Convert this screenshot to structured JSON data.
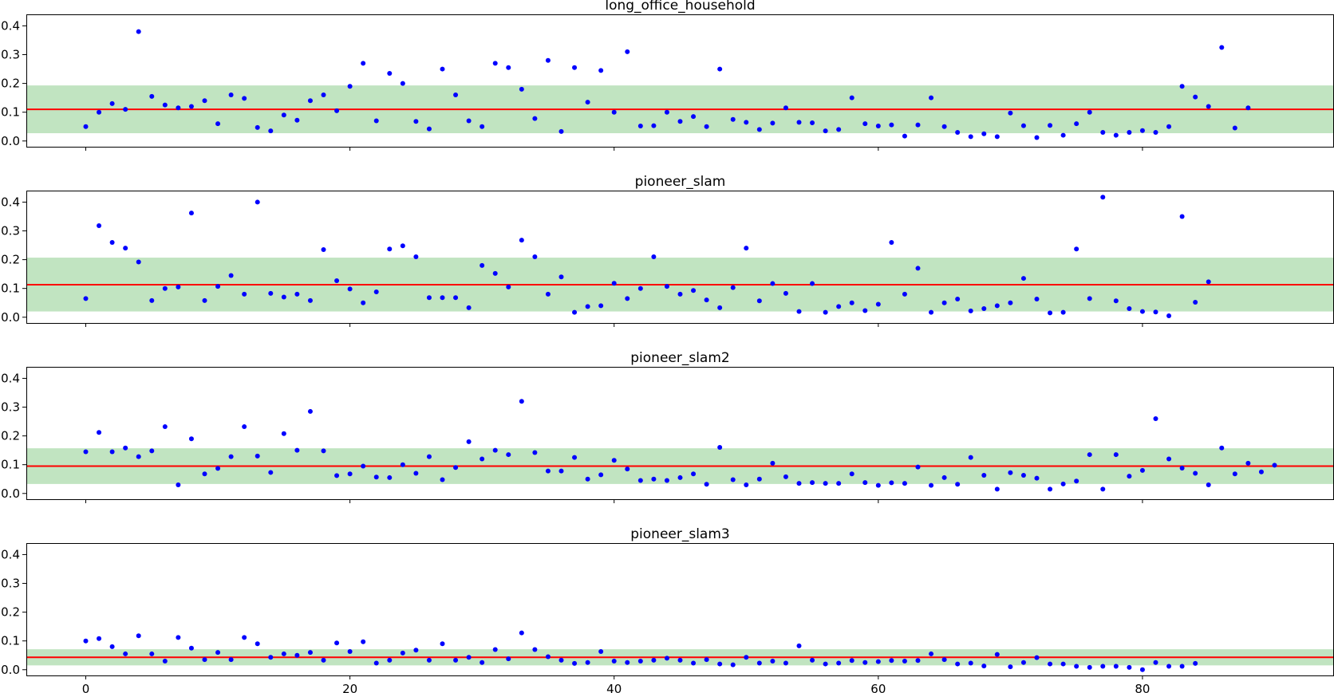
{
  "chart_data": [
    {
      "type": "scatter",
      "title": "long_office_household",
      "xlim": [
        -4.5,
        94.5
      ],
      "ylim": [
        -0.02,
        0.44
      ],
      "xticks": [
        0,
        20,
        40,
        60,
        80
      ],
      "xtick_labels": [
        "",
        "",
        "",
        "",
        ""
      ],
      "yticks": [
        0.0,
        0.1,
        0.2,
        0.3,
        0.4
      ],
      "ytick_labels": [
        "0.0",
        "0.1",
        "0.2",
        "0.3",
        "0.4"
      ],
      "mean": 0.11,
      "band": [
        0.027,
        0.193
      ],
      "point_color": "#0000ff",
      "mean_color": "#ff0000",
      "band_color": "#c1e4c1",
      "values": [
        0.05,
        0.1,
        0.13,
        0.11,
        0.38,
        0.155,
        0.125,
        0.115,
        0.12,
        0.14,
        0.06,
        0.16,
        0.148,
        0.047,
        0.035,
        0.09,
        0.072,
        0.14,
        0.16,
        0.105,
        0.19,
        0.27,
        0.07,
        0.235,
        0.2,
        0.068,
        0.042,
        0.25,
        0.16,
        0.07,
        0.05,
        0.27,
        0.255,
        0.18,
        0.078,
        0.28,
        0.033,
        0.255,
        0.135,
        0.245,
        0.1,
        0.31,
        0.052,
        0.053,
        0.1,
        0.068,
        0.085,
        0.05,
        0.25,
        0.075,
        0.065,
        0.04,
        0.062,
        0.115,
        0.065,
        0.063,
        0.035,
        0.04,
        0.15,
        0.06,
        0.052,
        0.056,
        0.017,
        0.056,
        0.15,
        0.05,
        0.03,
        0.015,
        0.025,
        0.015,
        0.097,
        0.053,
        0.012,
        0.054,
        0.02,
        0.06,
        0.1,
        0.03,
        0.02,
        0.03,
        0.036,
        0.03,
        0.05,
        0.19,
        0.153,
        0.12,
        0.325,
        0.045,
        0.115
      ]
    },
    {
      "type": "scatter",
      "title": "pioneer_slam",
      "xlim": [
        -4.5,
        94.5
      ],
      "ylim": [
        -0.02,
        0.44
      ],
      "xticks": [
        0,
        20,
        40,
        60,
        80
      ],
      "xtick_labels": [
        "",
        "",
        "",
        "",
        ""
      ],
      "yticks": [
        0.0,
        0.1,
        0.2,
        0.3,
        0.4
      ],
      "ytick_labels": [
        "0.0",
        "0.1",
        "0.2",
        "0.3",
        "0.4"
      ],
      "mean": 0.113,
      "band": [
        0.02,
        0.207
      ],
      "point_color": "#0000ff",
      "mean_color": "#ff0000",
      "band_color": "#c1e4c1",
      "values": [
        0.065,
        0.318,
        0.26,
        0.24,
        0.192,
        0.058,
        0.1,
        0.105,
        0.362,
        0.058,
        0.107,
        0.145,
        0.08,
        0.4,
        0.083,
        0.07,
        0.08,
        0.058,
        0.235,
        0.127,
        0.098,
        0.05,
        0.088,
        0.237,
        0.248,
        0.21,
        0.068,
        0.068,
        0.068,
        0.033,
        0.18,
        0.152,
        0.105,
        0.268,
        0.21,
        0.08,
        0.14,
        0.017,
        0.037,
        0.04,
        0.118,
        0.065,
        0.1,
        0.21,
        0.107,
        0.08,
        0.093,
        0.06,
        0.033,
        0.103,
        0.24,
        0.057,
        0.117,
        0.083,
        0.02,
        0.117,
        0.017,
        0.037,
        0.05,
        0.023,
        0.045,
        0.26,
        0.08,
        0.17,
        0.017,
        0.05,
        0.063,
        0.022,
        0.03,
        0.04,
        0.05,
        0.135,
        0.063,
        0.015,
        0.017,
        0.237,
        0.065,
        0.417,
        0.057,
        0.03,
        0.02,
        0.018,
        0.005,
        0.35,
        0.052,
        0.123
      ]
    },
    {
      "type": "scatter",
      "title": "pioneer_slam2",
      "xlim": [
        -4.5,
        94.5
      ],
      "ylim": [
        -0.02,
        0.44
      ],
      "xticks": [
        0,
        20,
        40,
        60,
        80
      ],
      "xtick_labels": [
        "",
        "",
        "",
        "",
        ""
      ],
      "yticks": [
        0.0,
        0.1,
        0.2,
        0.3,
        0.4
      ],
      "ytick_labels": [
        "0.0",
        "0.1",
        "0.2",
        "0.3",
        "0.4"
      ],
      "mean": 0.095,
      "band": [
        0.033,
        0.157
      ],
      "point_color": "#0000ff",
      "mean_color": "#ff0000",
      "band_color": "#c1e4c1",
      "values": [
        0.145,
        0.212,
        0.145,
        0.158,
        0.128,
        0.148,
        0.232,
        0.03,
        0.19,
        0.068,
        0.087,
        0.128,
        0.232,
        0.13,
        0.073,
        0.208,
        0.15,
        0.285,
        0.148,
        0.062,
        0.068,
        0.095,
        0.057,
        0.055,
        0.1,
        0.07,
        0.128,
        0.048,
        0.09,
        0.18,
        0.12,
        0.15,
        0.135,
        0.32,
        0.142,
        0.078,
        0.078,
        0.125,
        0.05,
        0.065,
        0.115,
        0.085,
        0.045,
        0.05,
        0.045,
        0.055,
        0.068,
        0.032,
        0.16,
        0.048,
        0.03,
        0.05,
        0.105,
        0.058,
        0.035,
        0.038,
        0.035,
        0.035,
        0.068,
        0.038,
        0.028,
        0.037,
        0.035,
        0.092,
        0.028,
        0.055,
        0.032,
        0.125,
        0.063,
        0.015,
        0.072,
        0.063,
        0.053,
        0.015,
        0.033,
        0.043,
        0.135,
        0.015,
        0.135,
        0.06,
        0.08,
        0.26,
        0.12,
        0.088,
        0.07,
        0.03,
        0.158,
        0.068,
        0.105,
        0.075,
        0.098
      ]
    },
    {
      "type": "scatter",
      "title": "pioneer_slam3",
      "xlim": [
        -4.5,
        94.5
      ],
      "ylim": [
        -0.02,
        0.44
      ],
      "xticks": [
        0,
        20,
        40,
        60,
        80
      ],
      "xtick_labels": [
        "0",
        "20",
        "40",
        "60",
        "80"
      ],
      "yticks": [
        0.0,
        0.1,
        0.2,
        0.3,
        0.4
      ],
      "ytick_labels": [
        "0.0",
        "0.1",
        "0.2",
        "0.3",
        "0.4"
      ],
      "mean": 0.043,
      "band": [
        0.015,
        0.071
      ],
      "point_color": "#0000ff",
      "mean_color": "#ff0000",
      "band_color": "#c1e4c1",
      "values": [
        0.1,
        0.108,
        0.08,
        0.055,
        0.118,
        0.055,
        0.03,
        0.112,
        0.075,
        0.035,
        0.06,
        0.035,
        0.112,
        0.09,
        0.043,
        0.055,
        0.05,
        0.06,
        0.033,
        0.093,
        0.063,
        0.097,
        0.023,
        0.033,
        0.058,
        0.068,
        0.033,
        0.09,
        0.033,
        0.043,
        0.025,
        0.07,
        0.038,
        0.128,
        0.07,
        0.045,
        0.033,
        0.022,
        0.025,
        0.063,
        0.03,
        0.025,
        0.03,
        0.033,
        0.04,
        0.033,
        0.023,
        0.035,
        0.02,
        0.017,
        0.043,
        0.023,
        0.03,
        0.023,
        0.083,
        0.033,
        0.02,
        0.023,
        0.032,
        0.025,
        0.028,
        0.032,
        0.03,
        0.032,
        0.055,
        0.035,
        0.02,
        0.023,
        0.013,
        0.053,
        0.01,
        0.025,
        0.042,
        0.02,
        0.02,
        0.012,
        0.008,
        0.012,
        0.012,
        0.008,
        0.0,
        0.025,
        0.012,
        0.012,
        0.022
      ]
    }
  ]
}
